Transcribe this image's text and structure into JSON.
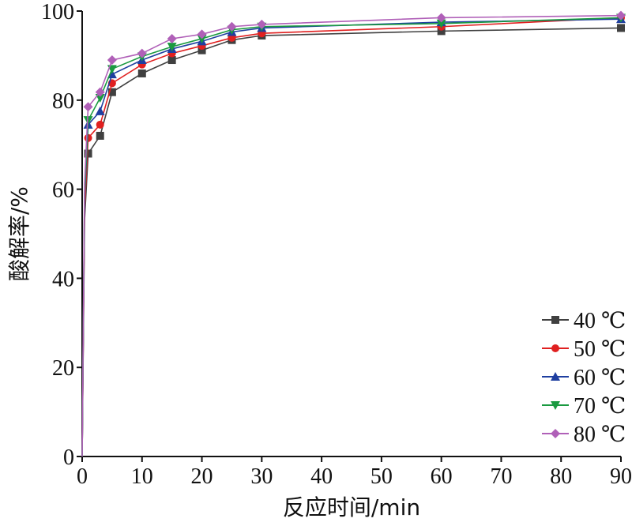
{
  "chart_data": {
    "type": "line",
    "xlabel": "反应时间/min",
    "ylabel": "酸解率/%",
    "xlim": [
      0,
      90
    ],
    "ylim": [
      0,
      100
    ],
    "xticks": [
      0,
      10,
      20,
      30,
      40,
      50,
      60,
      70,
      80,
      90
    ],
    "yticks": [
      0,
      20,
      40,
      60,
      80,
      100
    ],
    "grid": false,
    "legend_position": "bottom-right",
    "x": [
      1,
      3,
      5,
      10,
      15,
      20,
      25,
      30,
      60,
      90
    ],
    "series": [
      {
        "name": "40 ℃",
        "color": "#404040",
        "marker": "square",
        "values": [
          68,
          72,
          81.8,
          86,
          89,
          91.2,
          93.5,
          94.5,
          95.5,
          96.2
        ]
      },
      {
        "name": "50 ℃",
        "color": "#e02020",
        "marker": "circle",
        "values": [
          71.5,
          74.5,
          83.8,
          88,
          90.5,
          92.2,
          94,
          95,
          96.5,
          98.5
        ]
      },
      {
        "name": "60 ℃",
        "color": "#1f3fa0",
        "marker": "triangle-up",
        "values": [
          74.5,
          77.5,
          85.8,
          89,
          91.5,
          93.2,
          95.3,
          96.2,
          97.5,
          98.2
        ]
      },
      {
        "name": "70 ℃",
        "color": "#1a9a40",
        "marker": "triangle-down",
        "values": [
          75.5,
          80.5,
          87,
          89.8,
          92,
          93.8,
          95.8,
          96.5,
          97.2,
          98.5
        ]
      },
      {
        "name": "80 ℃",
        "color": "#b060b8",
        "marker": "diamond",
        "values": [
          78.5,
          81.8,
          89,
          90.5,
          93.8,
          94.8,
          96.5,
          97,
          98.5,
          99
        ]
      }
    ]
  }
}
